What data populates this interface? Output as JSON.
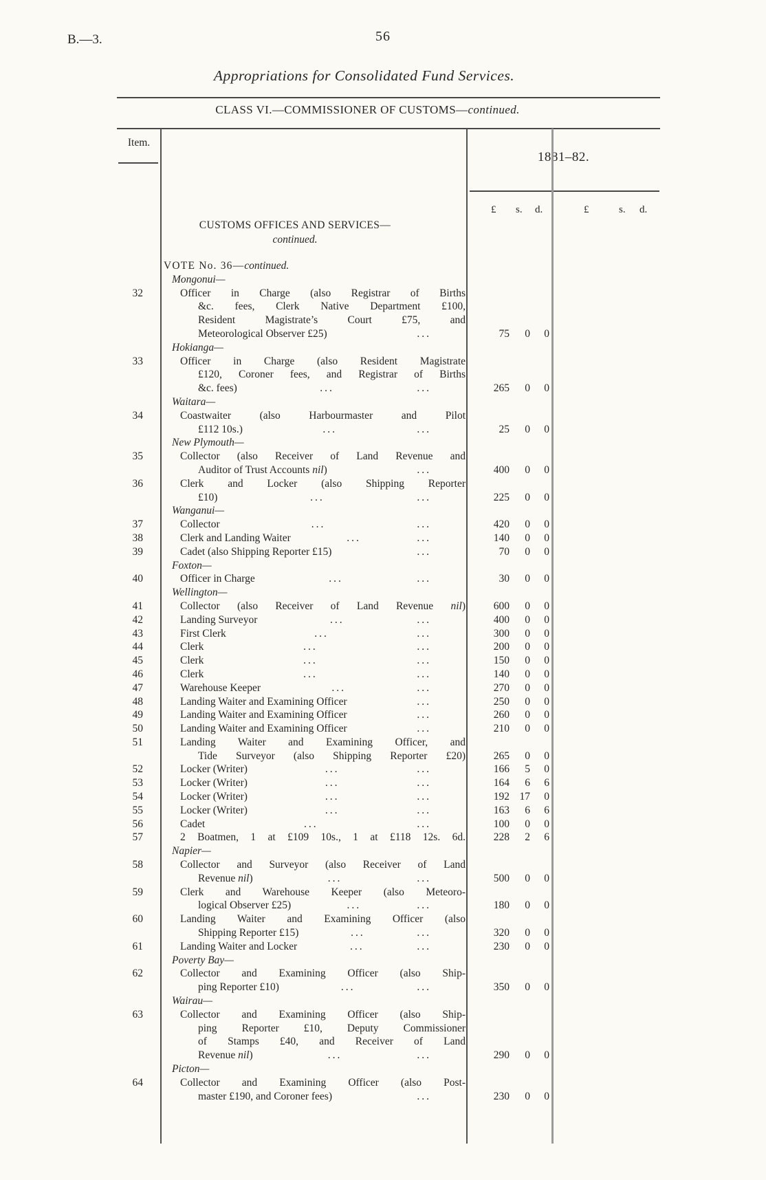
{
  "page": {
    "doc_ref": "B.—3.",
    "page_number": "56",
    "title": "Appropriations for Consolidated Fund Services.",
    "class_heading_main": "CLASS VI.—COMMISSIONER OF CUSTOMS—",
    "class_heading_cont": "continued."
  },
  "table": {
    "item_header": "Item.",
    "year_header": "1881–82.",
    "money_headers": [
      "£",
      "s.",
      "d."
    ],
    "section_title_main": "CUSTOMS OFFICES AND SERVICES—",
    "section_title_cont": "continued.",
    "dots_glyph": "...",
    "rows": [
      {
        "type": "vote",
        "main": "VOTE No. 36—",
        "cont": "continued."
      },
      {
        "type": "place",
        "text": "Mongonui—"
      },
      {
        "type": "entry",
        "item": "32",
        "amount": [
          "75",
          "0",
          "0"
        ],
        "lines": [
          {
            "ind": 0,
            "full": 1,
            "dots": 0,
            "segs": [
              [
                "Officer in Charge (also Registrar of Births",
                0
              ]
            ]
          },
          {
            "ind": 1,
            "full": 1,
            "dots": 0,
            "segs": [
              [
                "&c. fees, Clerk Native Department £100,",
                0
              ]
            ]
          },
          {
            "ind": 1,
            "full": 1,
            "dots": 0,
            "segs": [
              [
                "Resident Magistrate’s Court £75, and",
                0
              ]
            ]
          },
          {
            "ind": 1,
            "full": 0,
            "dots": 1,
            "segs": [
              [
                "Meteorological Observer £25)",
                0
              ]
            ]
          }
        ]
      },
      {
        "type": "place",
        "text": "Hokianga—"
      },
      {
        "type": "entry",
        "item": "33",
        "amount": [
          "265",
          "0",
          "0"
        ],
        "lines": [
          {
            "ind": 0,
            "full": 1,
            "dots": 0,
            "segs": [
              [
                "Officer in Charge (also Resident Magistrate",
                0
              ]
            ]
          },
          {
            "ind": 1,
            "full": 1,
            "dots": 0,
            "segs": [
              [
                "£120, Coroner fees, and Registrar of Births",
                0
              ]
            ]
          },
          {
            "ind": 1,
            "full": 0,
            "dots": 2,
            "segs": [
              [
                "&c. fees)",
                0
              ]
            ]
          }
        ]
      },
      {
        "type": "place",
        "text": "Waitara—"
      },
      {
        "type": "entry",
        "item": "34",
        "amount": [
          "25",
          "0",
          "0"
        ],
        "lines": [
          {
            "ind": 0,
            "full": 1,
            "dots": 0,
            "segs": [
              [
                "Coastwaiter (also Harbourmaster and Pilot",
                0
              ]
            ]
          },
          {
            "ind": 1,
            "full": 0,
            "dots": 2,
            "segs": [
              [
                "£112 10s.)",
                0
              ]
            ]
          }
        ]
      },
      {
        "type": "place",
        "text": "New Plymouth—"
      },
      {
        "type": "entry",
        "item": "35",
        "amount": [
          "400",
          "0",
          "0"
        ],
        "lines": [
          {
            "ind": 0,
            "full": 1,
            "dots": 0,
            "segs": [
              [
                "Collector (also Receiver of Land Revenue and",
                0
              ]
            ]
          },
          {
            "ind": 1,
            "full": 0,
            "dots": 1,
            "segs": [
              [
                "Auditor of Trust Accounts ",
                0
              ],
              [
                "nil",
                1
              ],
              [
                ")",
                0
              ]
            ]
          }
        ]
      },
      {
        "type": "entry",
        "item": "36",
        "amount": [
          "225",
          "0",
          "0"
        ],
        "lines": [
          {
            "ind": 0,
            "full": 1,
            "dots": 0,
            "segs": [
              [
                "Clerk and Locker (also Shipping Reporter",
                0
              ]
            ]
          },
          {
            "ind": 1,
            "full": 0,
            "dots": 2,
            "segs": [
              [
                "£10)",
                0
              ]
            ]
          }
        ]
      },
      {
        "type": "place",
        "text": "Wanganui—"
      },
      {
        "type": "entry",
        "item": "37",
        "amount": [
          "420",
          "0",
          "0"
        ],
        "lines": [
          {
            "ind": 0,
            "full": 0,
            "dots": 2,
            "segs": [
              [
                "Collector",
                0
              ]
            ]
          }
        ]
      },
      {
        "type": "entry",
        "item": "38",
        "amount": [
          "140",
          "0",
          "0"
        ],
        "lines": [
          {
            "ind": 0,
            "full": 0,
            "dots": 2,
            "segs": [
              [
                "Clerk and Landing Waiter",
                0
              ]
            ]
          }
        ]
      },
      {
        "type": "entry",
        "item": "39",
        "amount": [
          "70",
          "0",
          "0"
        ],
        "lines": [
          {
            "ind": 0,
            "full": 0,
            "dots": 1,
            "segs": [
              [
                "Cadet (also Shipping Reporter £15)",
                0
              ]
            ]
          }
        ]
      },
      {
        "type": "place",
        "text": "Foxton—"
      },
      {
        "type": "entry",
        "item": "40",
        "amount": [
          "30",
          "0",
          "0"
        ],
        "lines": [
          {
            "ind": 0,
            "full": 0,
            "dots": 2,
            "segs": [
              [
                "Officer in Charge",
                0
              ]
            ]
          }
        ]
      },
      {
        "type": "place",
        "text": "Wellington—"
      },
      {
        "type": "entry",
        "item": "41",
        "amount": [
          "600",
          "0",
          "0"
        ],
        "lines": [
          {
            "ind": 0,
            "full": 1,
            "dots": 0,
            "segs": [
              [
                "Collector (also Receiver of Land Revenue ",
                0
              ],
              [
                "nil",
                1
              ],
              [
                ")",
                0
              ]
            ]
          }
        ]
      },
      {
        "type": "entry",
        "item": "42",
        "amount": [
          "400",
          "0",
          "0"
        ],
        "lines": [
          {
            "ind": 0,
            "full": 0,
            "dots": 2,
            "segs": [
              [
                "Landing Surveyor",
                0
              ]
            ]
          }
        ]
      },
      {
        "type": "entry",
        "item": "43",
        "amount": [
          "300",
          "0",
          "0"
        ],
        "lines": [
          {
            "ind": 0,
            "full": 0,
            "dots": 2,
            "segs": [
              [
                "First Clerk",
                0
              ]
            ]
          }
        ]
      },
      {
        "type": "entry",
        "item": "44",
        "amount": [
          "200",
          "0",
          "0"
        ],
        "lines": [
          {
            "ind": 0,
            "full": 0,
            "dots": 2,
            "segs": [
              [
                "Clerk",
                0
              ]
            ]
          }
        ]
      },
      {
        "type": "entry",
        "item": "45",
        "amount": [
          "150",
          "0",
          "0"
        ],
        "lines": [
          {
            "ind": 0,
            "full": 0,
            "dots": 2,
            "segs": [
              [
                "Clerk",
                0
              ]
            ]
          }
        ]
      },
      {
        "type": "entry",
        "item": "46",
        "amount": [
          "140",
          "0",
          "0"
        ],
        "lines": [
          {
            "ind": 0,
            "full": 0,
            "dots": 2,
            "segs": [
              [
                "Clerk",
                0
              ]
            ]
          }
        ]
      },
      {
        "type": "entry",
        "item": "47",
        "amount": [
          "270",
          "0",
          "0"
        ],
        "lines": [
          {
            "ind": 0,
            "full": 0,
            "dots": 2,
            "segs": [
              [
                "Warehouse Keeper",
                0
              ]
            ]
          }
        ]
      },
      {
        "type": "entry",
        "item": "48",
        "amount": [
          "250",
          "0",
          "0"
        ],
        "lines": [
          {
            "ind": 0,
            "full": 0,
            "dots": 1,
            "segs": [
              [
                "Landing Waiter and Examining Officer",
                0
              ]
            ]
          }
        ]
      },
      {
        "type": "entry",
        "item": "49",
        "amount": [
          "260",
          "0",
          "0"
        ],
        "lines": [
          {
            "ind": 0,
            "full": 0,
            "dots": 1,
            "segs": [
              [
                "Landing Waiter and Examining Officer",
                0
              ]
            ]
          }
        ]
      },
      {
        "type": "entry",
        "item": "50",
        "amount": [
          "210",
          "0",
          "0"
        ],
        "lines": [
          {
            "ind": 0,
            "full": 0,
            "dots": 1,
            "segs": [
              [
                "Landing Waiter and Examining Officer",
                0
              ]
            ]
          }
        ]
      },
      {
        "type": "entry",
        "item": "51",
        "amount": [
          "265",
          "0",
          "0"
        ],
        "lines": [
          {
            "ind": 0,
            "full": 1,
            "dots": 0,
            "segs": [
              [
                "Landing Waiter and Examining Officer, and",
                0
              ]
            ]
          },
          {
            "ind": 1,
            "full": 1,
            "dots": 0,
            "segs": [
              [
                "Tide Surveyor (also Shipping Reporter £20)",
                0
              ]
            ]
          }
        ]
      },
      {
        "type": "entry",
        "item": "52",
        "amount": [
          "166",
          "5",
          "0"
        ],
        "lines": [
          {
            "ind": 0,
            "full": 0,
            "dots": 2,
            "segs": [
              [
                "Locker (Writer)",
                0
              ]
            ]
          }
        ]
      },
      {
        "type": "entry",
        "item": "53",
        "amount": [
          "164",
          "6",
          "6"
        ],
        "lines": [
          {
            "ind": 0,
            "full": 0,
            "dots": 2,
            "segs": [
              [
                "Locker (Writer)",
                0
              ]
            ]
          }
        ]
      },
      {
        "type": "entry",
        "item": "54",
        "amount": [
          "192",
          "17",
          "0"
        ],
        "lines": [
          {
            "ind": 0,
            "full": 0,
            "dots": 2,
            "segs": [
              [
                "Locker (Writer)",
                0
              ]
            ]
          }
        ]
      },
      {
        "type": "entry",
        "item": "55",
        "amount": [
          "163",
          "6",
          "6"
        ],
        "lines": [
          {
            "ind": 0,
            "full": 0,
            "dots": 2,
            "segs": [
              [
                "Locker (Writer)",
                0
              ]
            ]
          }
        ]
      },
      {
        "type": "entry",
        "item": "56",
        "amount": [
          "100",
          "0",
          "0"
        ],
        "lines": [
          {
            "ind": 0,
            "full": 0,
            "dots": 2,
            "segs": [
              [
                "Cadet",
                0
              ]
            ]
          }
        ]
      },
      {
        "type": "entry",
        "item": "57",
        "amount": [
          "228",
          "2",
          "6"
        ],
        "lines": [
          {
            "ind": 0,
            "full": 1,
            "dots": 0,
            "segs": [
              [
                "2 Boatmen, 1 at £109 10s., 1 at £118 12s. 6d.",
                0
              ]
            ]
          }
        ]
      },
      {
        "type": "place",
        "text": "Napier—"
      },
      {
        "type": "entry",
        "item": "58",
        "amount": [
          "500",
          "0",
          "0"
        ],
        "lines": [
          {
            "ind": 0,
            "full": 1,
            "dots": 0,
            "segs": [
              [
                "Collector and Surveyor (also Receiver of Land",
                0
              ]
            ]
          },
          {
            "ind": 1,
            "full": 0,
            "dots": 2,
            "segs": [
              [
                "Revenue ",
                0
              ],
              [
                "nil",
                1
              ],
              [
                ")",
                0
              ]
            ]
          }
        ]
      },
      {
        "type": "entry",
        "item": "59",
        "amount": [
          "180",
          "0",
          "0"
        ],
        "lines": [
          {
            "ind": 0,
            "full": 1,
            "dots": 0,
            "segs": [
              [
                "Clerk and Warehouse Keeper (also Meteoro-",
                0
              ]
            ]
          },
          {
            "ind": 1,
            "full": 0,
            "dots": 2,
            "segs": [
              [
                "logical Observer £25)",
                0
              ]
            ]
          }
        ]
      },
      {
        "type": "entry",
        "item": "60",
        "amount": [
          "320",
          "0",
          "0"
        ],
        "lines": [
          {
            "ind": 0,
            "full": 1,
            "dots": 0,
            "segs": [
              [
                "Landing Waiter and Examining Officer (also",
                0
              ]
            ]
          },
          {
            "ind": 1,
            "full": 0,
            "dots": 2,
            "segs": [
              [
                "Shipping Reporter £15)",
                0
              ]
            ]
          }
        ]
      },
      {
        "type": "entry",
        "item": "61",
        "amount": [
          "230",
          "0",
          "0"
        ],
        "lines": [
          {
            "ind": 0,
            "full": 0,
            "dots": 2,
            "segs": [
              [
                "Landing Waiter and Locker",
                0
              ]
            ]
          }
        ]
      },
      {
        "type": "place",
        "text": "Poverty Bay—"
      },
      {
        "type": "entry",
        "item": "62",
        "amount": [
          "350",
          "0",
          "0"
        ],
        "lines": [
          {
            "ind": 0,
            "full": 1,
            "dots": 0,
            "segs": [
              [
                "Collector and Examining Officer (also Ship-",
                0
              ]
            ]
          },
          {
            "ind": 1,
            "full": 0,
            "dots": 2,
            "segs": [
              [
                "ping Reporter £10)",
                0
              ]
            ]
          }
        ]
      },
      {
        "type": "place",
        "text": "Wairau—"
      },
      {
        "type": "entry",
        "item": "63",
        "amount": [
          "290",
          "0",
          "0"
        ],
        "lines": [
          {
            "ind": 0,
            "full": 1,
            "dots": 0,
            "segs": [
              [
                "Collector and Examining Officer (also Ship-",
                0
              ]
            ]
          },
          {
            "ind": 1,
            "full": 1,
            "dots": 0,
            "segs": [
              [
                "ping Reporter £10, Deputy Commissioner",
                0
              ]
            ]
          },
          {
            "ind": 1,
            "full": 1,
            "dots": 0,
            "segs": [
              [
                "of Stamps £40, and Receiver of Land",
                0
              ]
            ]
          },
          {
            "ind": 1,
            "full": 0,
            "dots": 2,
            "segs": [
              [
                "Revenue ",
                0
              ],
              [
                "nil",
                1
              ],
              [
                ")",
                0
              ]
            ]
          }
        ]
      },
      {
        "type": "place",
        "text": "Picton—"
      },
      {
        "type": "entry",
        "item": "64",
        "amount": [
          "230",
          "0",
          "0"
        ],
        "lines": [
          {
            "ind": 0,
            "full": 1,
            "dots": 0,
            "segs": [
              [
                "Collector and Examining Officer (also Post-",
                0
              ]
            ]
          },
          {
            "ind": 1,
            "full": 0,
            "dots": 1,
            "segs": [
              [
                "master £190, and Coroner fees)",
                0
              ]
            ]
          }
        ]
      }
    ]
  }
}
